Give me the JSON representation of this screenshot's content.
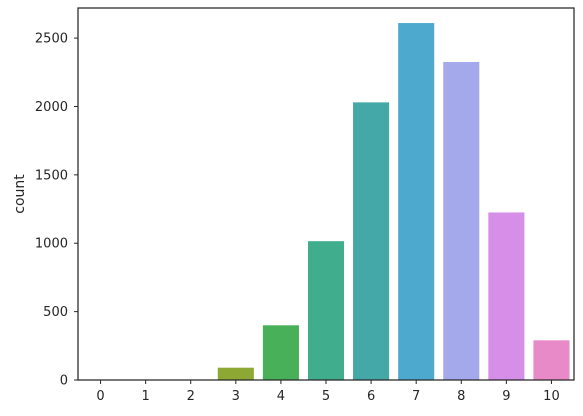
{
  "chart_data": {
    "type": "bar",
    "categories": [
      "0",
      "1",
      "2",
      "3",
      "4",
      "5",
      "6",
      "7",
      "8",
      "9",
      "10"
    ],
    "values": [
      1,
      2,
      3,
      90,
      400,
      1015,
      2030,
      2610,
      2325,
      1225,
      290
    ],
    "colors": [
      "#e88a8a",
      "#e0913f",
      "#c3a234",
      "#8ea834",
      "#47b059",
      "#40ae8d",
      "#44a9a6",
      "#4ea9cf",
      "#a3a9ea",
      "#d58fe8",
      "#e88ac7"
    ],
    "ylabel": "count",
    "xlabel": "",
    "ylim": [
      0,
      2720
    ],
    "yticks": [
      0,
      500,
      1000,
      1500,
      2000,
      2500
    ],
    "grid": false,
    "legend": "none"
  }
}
